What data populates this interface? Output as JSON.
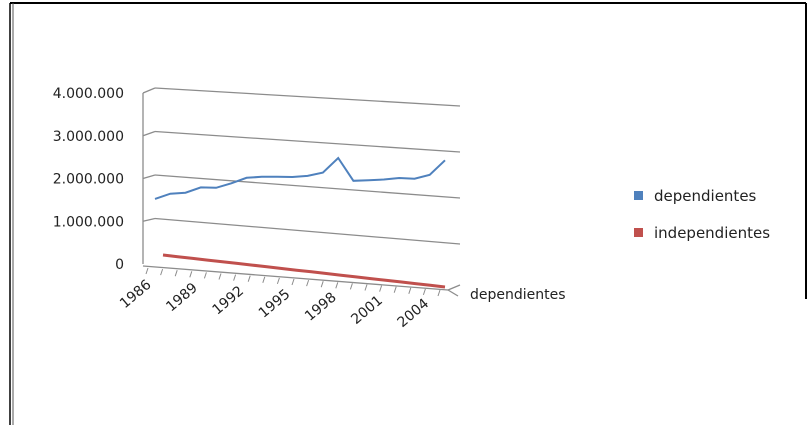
{
  "chart_data": {
    "type": "line",
    "x": [
      1986,
      1987,
      1988,
      1989,
      1990,
      1991,
      1992,
      1993,
      1994,
      1995,
      1996,
      1997,
      1998,
      1999,
      2000,
      2001,
      2002,
      2003,
      2004,
      2005
    ],
    "x_tick_labels": [
      "1986",
      "1989",
      "1992",
      "1995",
      "1998",
      "2001",
      "2004"
    ],
    "y_tick_labels": [
      "0",
      "1.000.000",
      "2.000.000",
      "3.000.000",
      "4.000.000"
    ],
    "ylim": [
      0,
      4000000
    ],
    "depth_axis_label": "dependientes",
    "grid": true,
    "legend_position": "right",
    "series": [
      {
        "name": "dependientes",
        "color": "#4f81bd",
        "values": [
          1450000,
          1600000,
          1650000,
          1800000,
          1820000,
          1950000,
          2100000,
          2150000,
          2180000,
          2200000,
          2250000,
          2350000,
          2700000,
          2220000,
          2260000,
          2300000,
          2360000,
          2370000,
          2480000,
          2820000
        ]
      },
      {
        "name": "independientes",
        "color": "#c0504d",
        "values": [
          0,
          0,
          0,
          0,
          0,
          0,
          0,
          0,
          0,
          0,
          0,
          0,
          0,
          0,
          0,
          0,
          0,
          0,
          0,
          0
        ]
      }
    ]
  }
}
